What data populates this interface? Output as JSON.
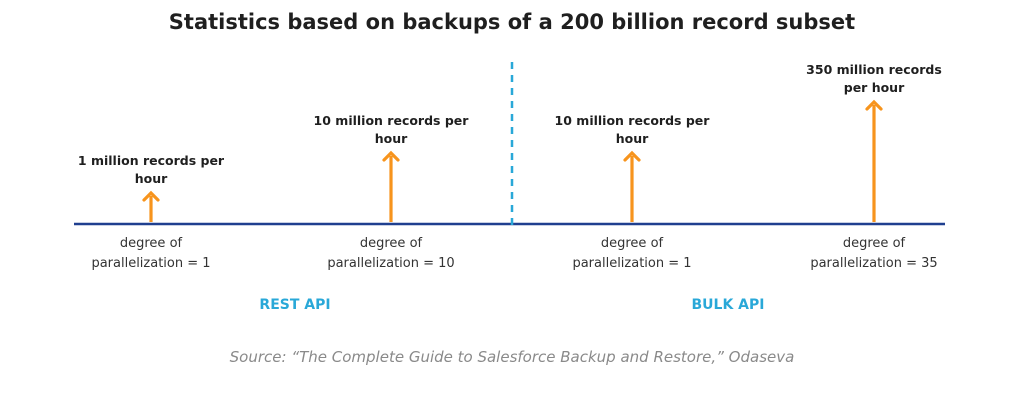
{
  "colors": {
    "arrow": "#f7941d",
    "baseline": "#1f3f8f",
    "divider": "#29a8d8",
    "group_label": "#29a8d8",
    "text": "#1f1f1f",
    "source": "#8a8a8a"
  },
  "chart_data": {
    "type": "bar",
    "title": "Statistics based on backups of a 200 billion record subset",
    "subtitle": "",
    "xlabel": "",
    "ylabel": "",
    "ylim": [
      0,
      350
    ],
    "grid": false,
    "legend": "none",
    "categories": [
      [
        "degree of",
        "parallelization = 1"
      ],
      [
        "degree of",
        "parallelization = 10"
      ],
      [
        "degree of",
        "parallelization = 1"
      ],
      [
        "degree of",
        "parallelization = 35"
      ]
    ],
    "values": [
      1,
      10,
      10,
      350
    ],
    "value_labels": [
      [
        "1 million records per",
        "hour"
      ],
      [
        "10 million records per",
        "hour"
      ],
      [
        "10 million records per",
        "hour"
      ],
      [
        "350 million records",
        "per hour"
      ]
    ],
    "groups": [
      {
        "label": "REST API",
        "categories": [
          0,
          1
        ]
      },
      {
        "label": "BULK API",
        "categories": [
          2,
          3
        ]
      }
    ],
    "source": "Source: “The Complete Guide to Salesforce Backup and Restore,” Odaseva"
  }
}
